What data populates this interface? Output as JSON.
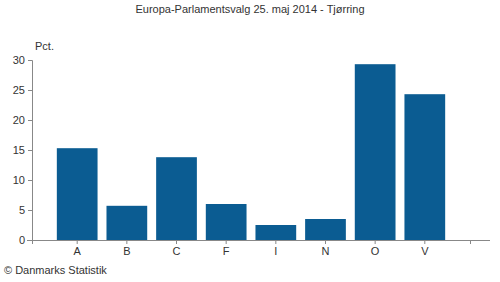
{
  "chart_data": {
    "type": "bar",
    "title": "Europa-Parlamentsvalg 25. maj 2014 - Tjørring",
    "y_label": "Pct.",
    "source": "© Danmarks Statistik",
    "categories": [
      "A",
      "B",
      "C",
      "F",
      "I",
      "N",
      "O",
      "V"
    ],
    "values": [
      15.3,
      5.7,
      13.8,
      6.0,
      2.5,
      3.5,
      29.3,
      24.3
    ],
    "color": "#0b5c92",
    "ylim": [
      0,
      30
    ],
    "yticks": [
      0,
      5,
      10,
      15,
      20,
      25,
      30
    ],
    "grid": false
  }
}
